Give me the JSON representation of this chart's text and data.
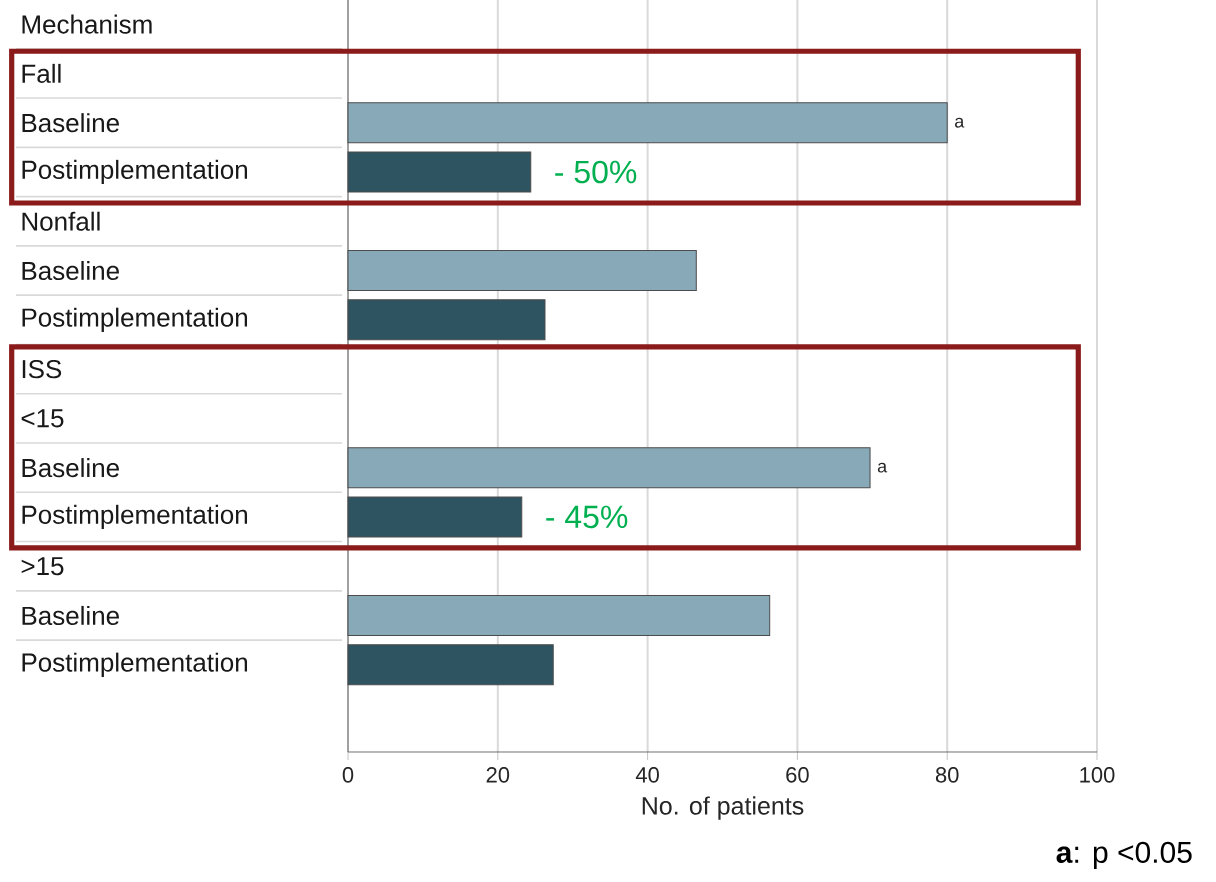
{
  "chart_data": {
    "type": "bar",
    "orientation": "horizontal",
    "categories": [
      "Mechanism",
      "Fall",
      "Baseline",
      "Postimplementation",
      "Nonfall",
      "Baseline",
      "Postimplementation",
      "ISS",
      "<15",
      "Baseline",
      "Postimplementation",
      ">15",
      "Baseline",
      "Postimplementation"
    ],
    "series": [
      {
        "color": "#87a9b8",
        "values": [
          null,
          null,
          80,
          null,
          null,
          46.5,
          null,
          null,
          null,
          69.7,
          null,
          null,
          56.3,
          null
        ],
        "value_labels": [
          null,
          null,
          "a",
          null,
          null,
          null,
          null,
          null,
          null,
          "a",
          null,
          null,
          null,
          null
        ]
      },
      {
        "color": "#2e5461",
        "values": [
          null,
          null,
          null,
          24.4,
          null,
          null,
          26.3,
          null,
          null,
          null,
          23.2,
          null,
          null,
          27.4
        ]
      }
    ],
    "xlim": [
      0,
      100
    ],
    "xticks": [
      0,
      20,
      40,
      60,
      80,
      100
    ],
    "xlabel": "No. of patients",
    "grid": "x",
    "annotations": [
      "- 50%",
      "- 45%",
      "**a**: p <0.05"
    ]
  }
}
